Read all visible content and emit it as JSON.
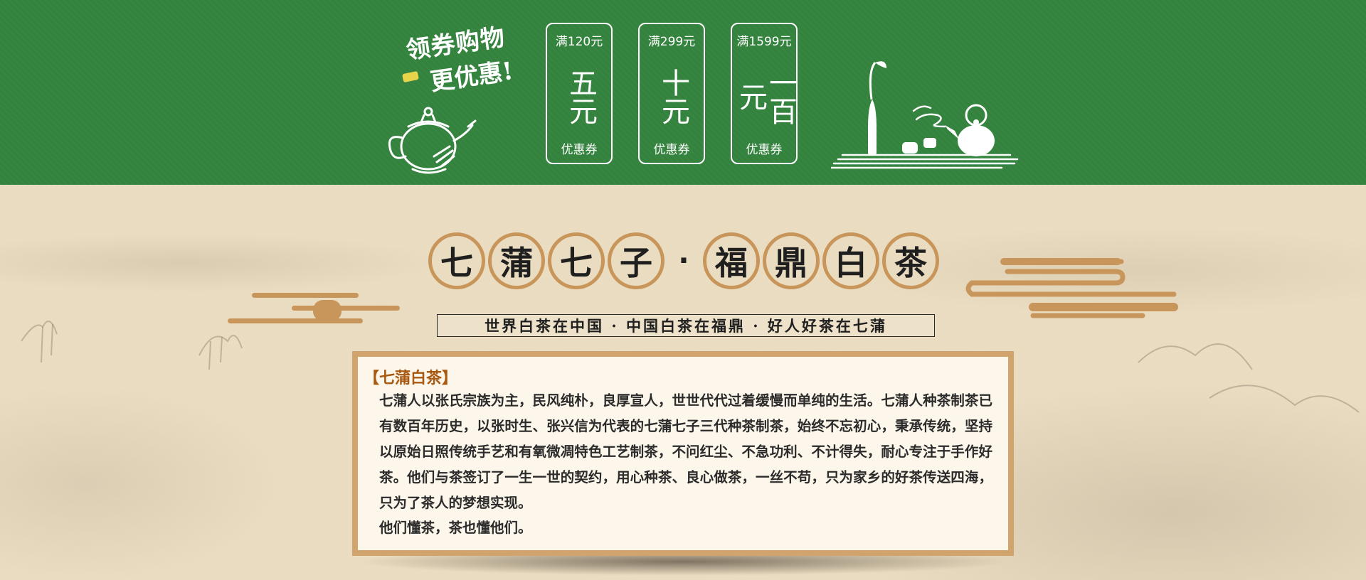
{
  "banner": {
    "slogan_line1": "领券购物",
    "slogan_line2": "更优惠!",
    "coupons": [
      {
        "condition": "满120元",
        "amount": "五元",
        "label": "优惠券"
      },
      {
        "condition": "满299元",
        "amount": "十元",
        "label": "优惠券"
      },
      {
        "condition": "满1599元",
        "amount": "一百元",
        "label": "优惠券"
      }
    ],
    "colors": {
      "green": "#33823d",
      "accent_yellow": "#e8d44a"
    }
  },
  "title": {
    "chars_left": [
      "七",
      "蒲",
      "七",
      "子"
    ],
    "separator": "·",
    "chars_right": [
      "福",
      "鼎",
      "白",
      "茶"
    ],
    "ring_color": "#c8965a"
  },
  "subtitle": "世界白茶在中国 · 中国白茶在福鼎 · 好人好茶在七蒲",
  "intro": {
    "heading": "【七蒲白茶】",
    "body": "七蒲人以张氏宗族为主，民风纯朴，良厚宣人，世世代代过着缓慢而单纯的生活。七蒲人种茶制茶已有数百年历史，以张时生、张兴信为代表的七蒲七子三代种茶制茶，始终不忘初心，秉承传统，坚持以原始日照传统手艺和有氧微凋特色工艺制茶，不问红尘、不急功利、不计得失，耐心专注于手作好茶。他们与茶签订了一生一世的契约，用心种茶、良心做茶，一丝不苟，只为家乡的好茶传送四海，只为了茶人的梦想实现。",
    "tagline": "他们懂茶，茶也懂他们。",
    "heading_color": "#a85a12",
    "frame_color": "#d0a46c"
  }
}
